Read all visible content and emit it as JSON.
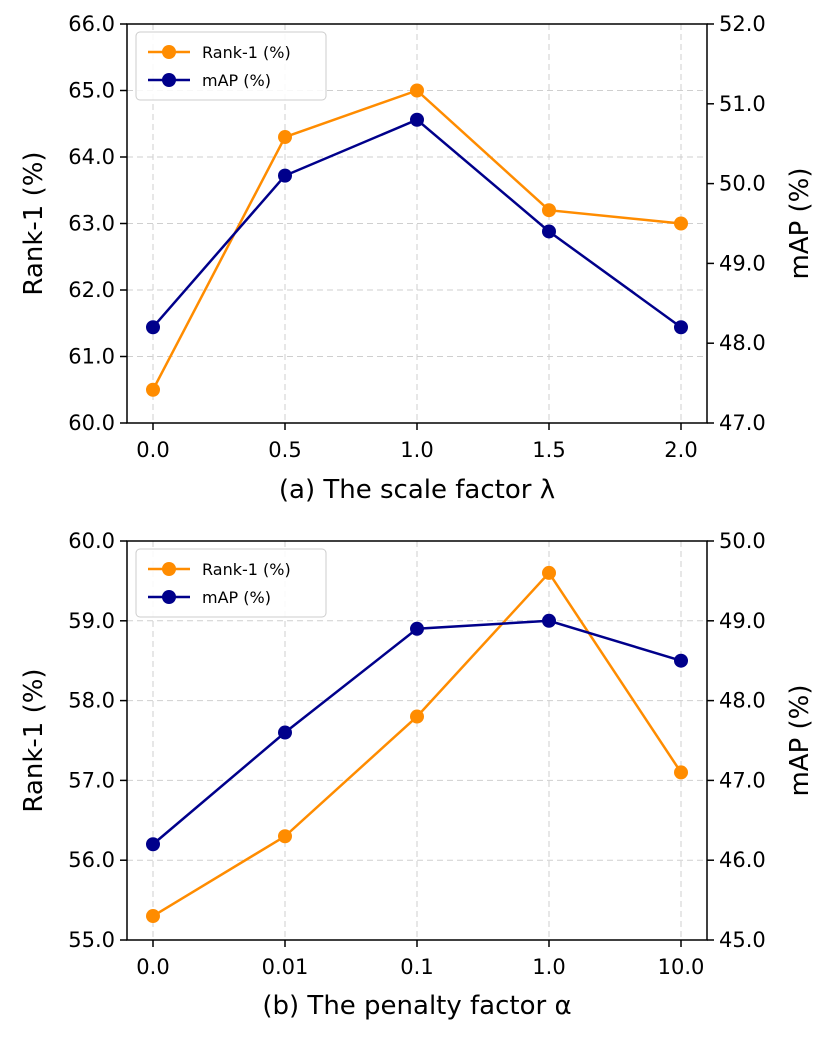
{
  "chart_data": [
    {
      "type": "line",
      "title": "(a) The scale factor λ",
      "xlabel": "(a) The scale factor λ",
      "categories": [
        "0.0",
        "0.5",
        "1.0",
        "1.5",
        "2.0"
      ],
      "left_axis": {
        "label": "Rank-1 (%)",
        "ylim": [
          60.0,
          66.0
        ],
        "ticks": [
          "60.0",
          "61.0",
          "62.0",
          "63.0",
          "64.0",
          "65.0",
          "66.0"
        ]
      },
      "right_axis": {
        "label": "mAP (%)",
        "ylim": [
          47.0,
          52.0
        ],
        "ticks": [
          "47.0",
          "48.0",
          "49.0",
          "50.0",
          "51.0",
          "52.0"
        ]
      },
      "grid": true,
      "legend_position": "top-left",
      "series": [
        {
          "name": "Rank-1 (%)",
          "axis": "left",
          "color": "#ff8c00",
          "values": [
            60.5,
            64.3,
            65.0,
            63.2,
            63.0
          ]
        },
        {
          "name": "mAP (%)",
          "axis": "right",
          "color": "#00008b",
          "values": [
            48.2,
            50.1,
            50.8,
            49.4,
            48.2
          ]
        }
      ]
    },
    {
      "type": "line",
      "title": "(b) The penalty factor α",
      "xlabel": "(b) The penalty factor α",
      "categories": [
        "0.0",
        "0.01",
        "0.1",
        "1.0",
        "10.0"
      ],
      "left_axis": {
        "label": "Rank-1 (%)",
        "ylim": [
          55.0,
          60.0
        ],
        "ticks": [
          "55.0",
          "56.0",
          "57.0",
          "58.0",
          "59.0",
          "60.0"
        ]
      },
      "right_axis": {
        "label": "mAP (%)",
        "ylim": [
          45.0,
          50.0
        ],
        "ticks": [
          "45.0",
          "46.0",
          "47.0",
          "48.0",
          "49.0",
          "50.0"
        ]
      },
      "grid": true,
      "legend_position": "top-left",
      "series": [
        {
          "name": "Rank-1 (%)",
          "axis": "left",
          "color": "#ff8c00",
          "values": [
            55.3,
            56.3,
            57.8,
            59.6,
            57.1
          ]
        },
        {
          "name": "mAP (%)",
          "axis": "right",
          "color": "#00008b",
          "values": [
            46.2,
            47.6,
            48.9,
            49.0,
            48.5
          ]
        }
      ]
    }
  ]
}
